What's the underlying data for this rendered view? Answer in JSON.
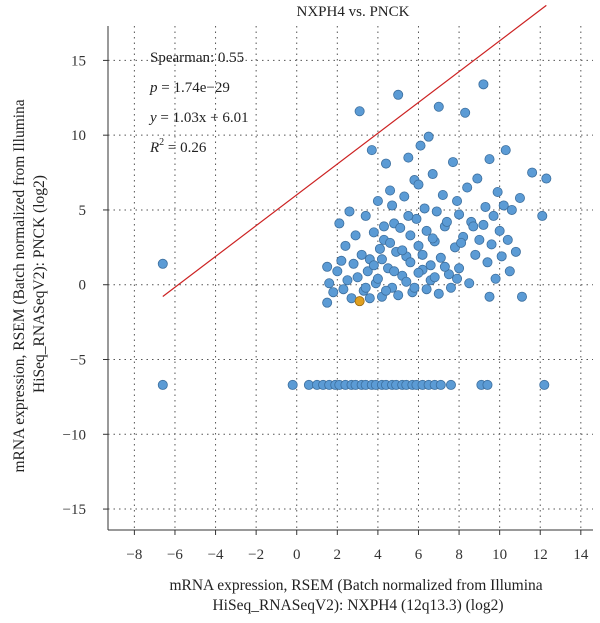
{
  "chart_data": {
    "type": "scatter",
    "title": "NXPH4 vs. PNCK",
    "xlabel_lines": [
      "mRNA expression, RSEM (Batch normalized from Illumina",
      "HiSeq_RNASeqV2): NXPH4 (12q13.3) (log2)"
    ],
    "ylabel_lines": [
      "mRNA expression, RSEM (Batch normalized from Illumina",
      "HiSeq_RNASeqV2): PNCK (log2)"
    ],
    "xlim": [
      -9.3,
      14.6
    ],
    "ylim": [
      -16.4,
      17.3
    ],
    "xticks": [
      -8,
      -6,
      -4,
      -2,
      0,
      2,
      4,
      6,
      8,
      10,
      12,
      14
    ],
    "yticks": [
      -15,
      -10,
      -5,
      0,
      5,
      10,
      15
    ],
    "grid": true,
    "annotations": {
      "spearman": "Spearman: 0.55",
      "p_label": "p",
      "p_value": " = 1.74e−29",
      "y_label": "y",
      "equation": " = 1.03x + 6.01",
      "r_label": "R",
      "r_sup": "2",
      "r_value": " = 0.26"
    },
    "regression": {
      "slope": 1.03,
      "intercept": 6.01,
      "x_range": [
        -6.6,
        12.3
      ],
      "color": "#cc2222"
    },
    "point_color": "#5b9bd5",
    "point_edge": "#3d6f9e",
    "highlight_color": "#e0a020",
    "highlight_point": [
      3.1,
      -1.1
    ],
    "points": [
      [
        -6.6,
        1.4
      ],
      [
        -6.6,
        -6.7
      ],
      [
        -0.2,
        -6.7
      ],
      [
        0.6,
        -6.7
      ],
      [
        1.0,
        -6.7
      ],
      [
        1.3,
        -6.7
      ],
      [
        1.6,
        -6.7
      ],
      [
        1.9,
        -6.7
      ],
      [
        2.1,
        -6.7
      ],
      [
        2.4,
        -6.7
      ],
      [
        2.7,
        -6.7
      ],
      [
        2.9,
        -6.7
      ],
      [
        3.2,
        -6.7
      ],
      [
        3.4,
        -6.7
      ],
      [
        3.7,
        -6.7
      ],
      [
        3.9,
        -6.7
      ],
      [
        4.2,
        -6.7
      ],
      [
        4.4,
        -6.7
      ],
      [
        4.7,
        -6.7
      ],
      [
        4.9,
        -6.7
      ],
      [
        5.2,
        -6.7
      ],
      [
        5.4,
        -6.7
      ],
      [
        5.7,
        -6.7
      ],
      [
        5.9,
        -6.7
      ],
      [
        6.2,
        -6.7
      ],
      [
        6.5,
        -6.7
      ],
      [
        6.8,
        -6.7
      ],
      [
        7.1,
        -6.7
      ],
      [
        7.6,
        -6.7
      ],
      [
        9.1,
        -6.7
      ],
      [
        9.4,
        -6.7
      ],
      [
        12.2,
        -6.7
      ],
      [
        1.5,
        1.2
      ],
      [
        1.6,
        0.1
      ],
      [
        1.5,
        -1.2
      ],
      [
        1.8,
        -0.5
      ],
      [
        2.0,
        0.9
      ],
      [
        2.1,
        4.1
      ],
      [
        2.2,
        1.6
      ],
      [
        2.3,
        -0.3
      ],
      [
        2.4,
        2.6
      ],
      [
        2.5,
        0.3
      ],
      [
        2.6,
        4.9
      ],
      [
        2.7,
        -0.9
      ],
      [
        2.8,
        1.4
      ],
      [
        2.9,
        3.3
      ],
      [
        3.0,
        0.5
      ],
      [
        3.1,
        11.6
      ],
      [
        3.2,
        2.0
      ],
      [
        3.3,
        -0.4
      ],
      [
        3.4,
        4.6
      ],
      [
        3.5,
        0.9
      ],
      [
        3.6,
        1.7
      ],
      [
        3.7,
        9.0
      ],
      [
        3.8,
        3.5
      ],
      [
        3.9,
        0.1
      ],
      [
        4.0,
        5.6
      ],
      [
        4.1,
        2.4
      ],
      [
        4.2,
        -0.8
      ],
      [
        4.3,
        3.0
      ],
      [
        4.4,
        8.1
      ],
      [
        4.5,
        1.1
      ],
      [
        4.6,
        6.3
      ],
      [
        4.7,
        -0.2
      ],
      [
        4.8,
        4.1
      ],
      [
        4.9,
        2.2
      ],
      [
        5.0,
        12.7
      ],
      [
        5.1,
        3.8
      ],
      [
        5.2,
        0.6
      ],
      [
        5.3,
        5.9
      ],
      [
        5.4,
        1.9
      ],
      [
        5.5,
        8.5
      ],
      [
        5.6,
        3.3
      ],
      [
        5.7,
        -0.5
      ],
      [
        5.8,
        7.0
      ],
      [
        5.9,
        4.4
      ],
      [
        6.0,
        2.6
      ],
      [
        6.1,
        9.3
      ],
      [
        6.2,
        1.0
      ],
      [
        6.3,
        5.1
      ],
      [
        6.4,
        3.6
      ],
      [
        6.5,
        9.9
      ],
      [
        6.6,
        0.3
      ],
      [
        6.7,
        7.4
      ],
      [
        6.8,
        2.9
      ],
      [
        6.9,
        4.9
      ],
      [
        7.0,
        11.9
      ],
      [
        7.1,
        1.8
      ],
      [
        7.2,
        6.0
      ],
      [
        7.3,
        3.9
      ],
      [
        7.5,
        0.7
      ],
      [
        7.7,
        8.2
      ],
      [
        7.8,
        2.5
      ],
      [
        7.9,
        5.6
      ],
      [
        8.0,
        1.1
      ],
      [
        8.2,
        3.2
      ],
      [
        8.3,
        11.5
      ],
      [
        8.4,
        6.5
      ],
      [
        8.5,
        0.1
      ],
      [
        8.6,
        4.2
      ],
      [
        8.8,
        2.0
      ],
      [
        8.9,
        7.1
      ],
      [
        9.0,
        3.0
      ],
      [
        9.2,
        13.4
      ],
      [
        9.3,
        5.2
      ],
      [
        9.4,
        1.5
      ],
      [
        9.5,
        8.4
      ],
      [
        9.6,
        2.7
      ],
      [
        9.7,
        4.6
      ],
      [
        9.8,
        0.4
      ],
      [
        9.9,
        6.2
      ],
      [
        10.0,
        3.6
      ],
      [
        10.1,
        1.9
      ],
      [
        10.2,
        5.3
      ],
      [
        10.3,
        9.0
      ],
      [
        10.4,
        3.0
      ],
      [
        10.5,
        0.9
      ],
      [
        10.6,
        5.0
      ],
      [
        10.8,
        2.2
      ],
      [
        11.0,
        5.8
      ],
      [
        11.6,
        7.5
      ],
      [
        12.1,
        4.6
      ],
      [
        12.3,
        7.1
      ],
      [
        3.4,
        -0.2
      ],
      [
        3.6,
        -0.9
      ],
      [
        3.8,
        1.3
      ],
      [
        4.0,
        0.4
      ],
      [
        4.2,
        1.7
      ],
      [
        4.4,
        -0.4
      ],
      [
        4.6,
        2.8
      ],
      [
        4.8,
        0.9
      ],
      [
        5.0,
        -0.7
      ],
      [
        5.2,
        2.3
      ],
      [
        5.4,
        0.2
      ],
      [
        5.6,
        1.5
      ],
      [
        5.8,
        -0.2
      ],
      [
        6.0,
        0.8
      ],
      [
        6.2,
        2.0
      ],
      [
        6.4,
        -0.3
      ],
      [
        6.6,
        1.3
      ],
      [
        6.8,
        0.5
      ],
      [
        7.0,
        -0.6
      ],
      [
        7.3,
        1.2
      ],
      [
        7.6,
        -0.2
      ],
      [
        7.9,
        0.4
      ],
      [
        8.1,
        2.8
      ],
      [
        9.5,
        -0.8
      ],
      [
        11.1,
        -0.8
      ],
      [
        4.3,
        3.9
      ],
      [
        4.7,
        5.3
      ],
      [
        5.5,
        4.6
      ],
      [
        6.0,
        6.7
      ],
      [
        6.7,
        3.1
      ],
      [
        7.4,
        4.2
      ],
      [
        8.0,
        4.7
      ],
      [
        8.7,
        3.9
      ],
      [
        9.2,
        4.0
      ]
    ]
  }
}
